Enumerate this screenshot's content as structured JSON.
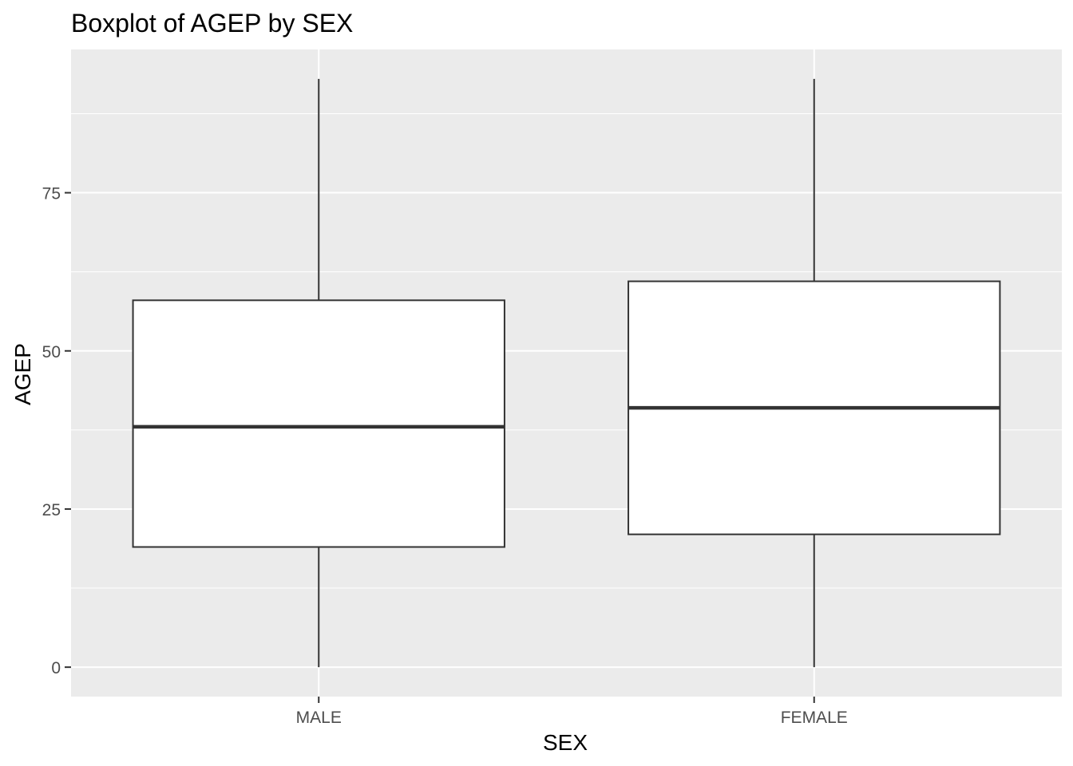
{
  "chart_data": {
    "type": "boxplot",
    "title": "Boxplot of AGEP by SEX",
    "xlabel": "SEX",
    "ylabel": "AGEP",
    "categories": [
      "MALE",
      "FEMALE"
    ],
    "boxes": [
      {
        "category": "MALE",
        "min": 0,
        "q1": 19,
        "median": 38,
        "q3": 58,
        "max": 93
      },
      {
        "category": "FEMALE",
        "min": 0,
        "q1": 21,
        "median": 41,
        "q3": 61,
        "max": 93
      }
    ],
    "y_ticks": [
      0,
      25,
      50,
      75
    ],
    "y_tick_labels": [
      "0",
      "25",
      "50",
      "75"
    ],
    "ylim": [
      -4.65,
      97.65
    ],
    "grid": true,
    "colors": {
      "panel_background": "#EBEBEB",
      "grid": "#FFFFFF",
      "box_fill": "#FFFFFF",
      "box_line": "#333333"
    }
  }
}
